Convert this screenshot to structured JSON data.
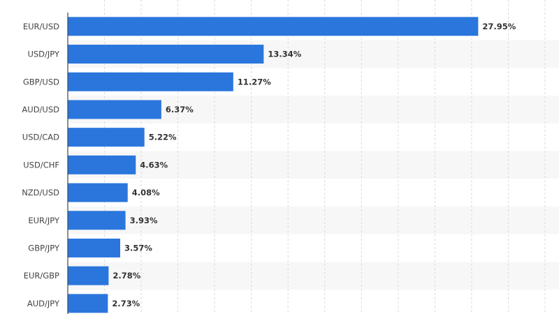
{
  "chart_data": {
    "type": "bar",
    "orientation": "horizontal",
    "title": "",
    "xlabel": "",
    "ylabel": "",
    "xlim": [
      0,
      32.5
    ],
    "categories": [
      "EUR/USD",
      "USD/JPY",
      "GBP/USD",
      "AUD/USD",
      "USD/CAD",
      "USD/CHF",
      "NZD/USD",
      "EUR/JPY",
      "GBP/JPY",
      "EUR/GBP",
      "AUD/JPY"
    ],
    "values": [
      27.95,
      13.34,
      11.27,
      6.37,
      5.22,
      4.63,
      4.08,
      3.93,
      3.57,
      2.78,
      2.73
    ],
    "value_labels": [
      "27.95%",
      "13.34%",
      "11.27%",
      "6.37%",
      "5.22%",
      "4.63%",
      "4.08%",
      "3.93%",
      "3.57%",
      "2.78%",
      "2.73%"
    ],
    "grid": true,
    "legend": "none",
    "bar_color": "#2a76dd",
    "band_color": "#f7f7f7",
    "grid_color": "#d9d9d9"
  }
}
